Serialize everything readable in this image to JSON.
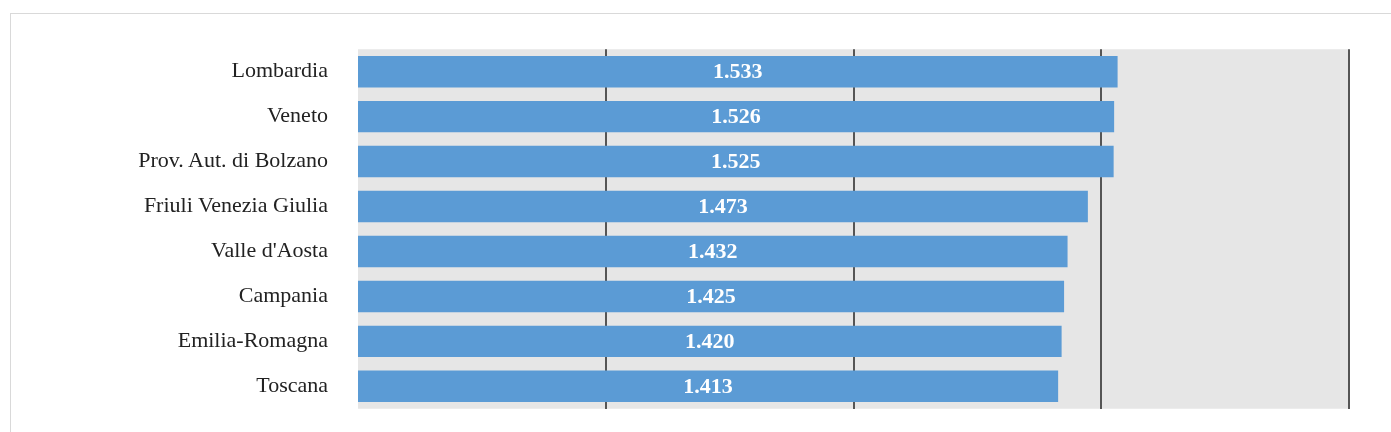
{
  "chart_data": {
    "type": "bar",
    "orientation": "horizontal",
    "categories": [
      "Lombardia",
      "Veneto",
      "Prov. Aut. di Bolzano",
      "Friuli Venezia Giulia",
      "Valle d'Aosta",
      "Campania",
      "Emilia-Romagna",
      "Toscana"
    ],
    "values": [
      1533,
      1526,
      1525,
      1473,
      1432,
      1425,
      1420,
      1413
    ],
    "value_labels": [
      "1.533",
      "1.526",
      "1.525",
      "1.473",
      "1.432",
      "1.425",
      "1.420",
      "1.413"
    ],
    "color": "#5b9bd5",
    "xlim": [
      0,
      2000
    ],
    "xticks": [
      {
        "value": 500,
        "label": null
      },
      {
        "value": 1000,
        "label": null
      },
      {
        "value": 1500,
        "label": null
      },
      {
        "value": 2000,
        "label": null
      }
    ],
    "grid": "x",
    "tick_labels": "y"
  }
}
